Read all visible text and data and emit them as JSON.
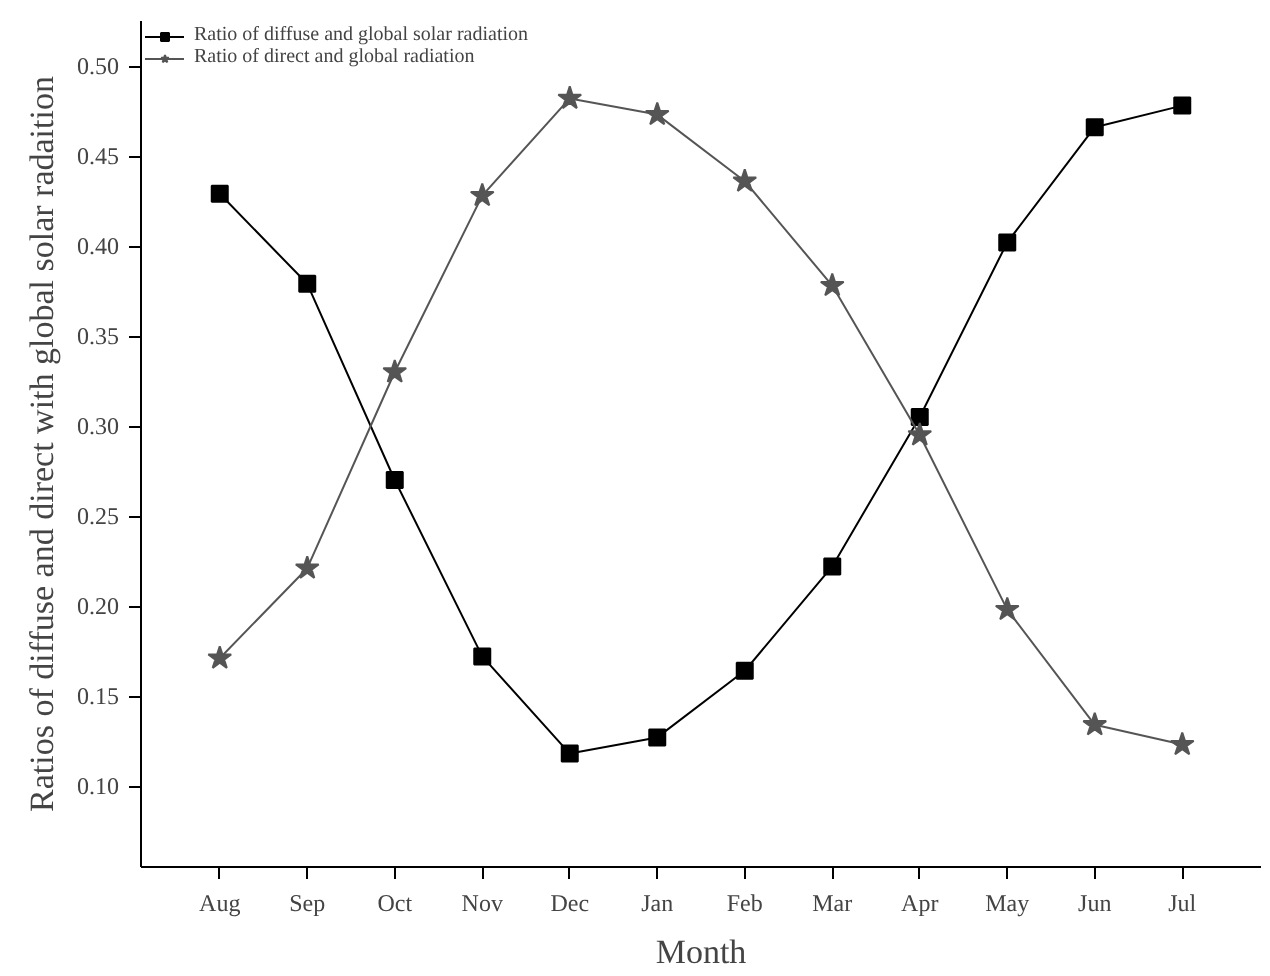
{
  "chart_data": {
    "type": "line",
    "xlabel": "Month",
    "ylabel": "Ratios of diffuse and direct with global solar radaition",
    "categories": [
      "Aug",
      "Sep",
      "Oct",
      "Nov",
      "Dec",
      "Jan",
      "Feb",
      "Mar",
      "Apr",
      "May",
      "Jun",
      "Jul"
    ],
    "series": [
      {
        "name": "Ratio of diffuse and global solar radiation",
        "color": "#000000",
        "marker": "square",
        "values": [
          0.429,
          0.379,
          0.27,
          0.172,
          0.118,
          0.127,
          0.164,
          0.222,
          0.305,
          0.402,
          0.466,
          0.478
        ]
      },
      {
        "name": "Ratio of direct and global radiation",
        "color": "#555555",
        "marker": "star",
        "values": [
          0.171,
          0.221,
          0.33,
          0.428,
          0.482,
          0.473,
          0.436,
          0.378,
          0.295,
          0.198,
          0.134,
          0.123
        ]
      }
    ],
    "ylim": [
      0.055,
      0.525
    ],
    "yticks": [
      {
        "value": 0.1,
        "label": "0.10"
      },
      0.15,
      {
        "value": 0.2,
        "label": "0.20"
      },
      0.25,
      {
        "value": 0.3,
        "label": "0.30"
      },
      0.35,
      {
        "value": 0.4,
        "label": "0.40"
      },
      0.45,
      {
        "value": 0.5,
        "label": "0.50"
      }
    ],
    "grid": false,
    "legend": "top left",
    "line_style": "solid"
  }
}
